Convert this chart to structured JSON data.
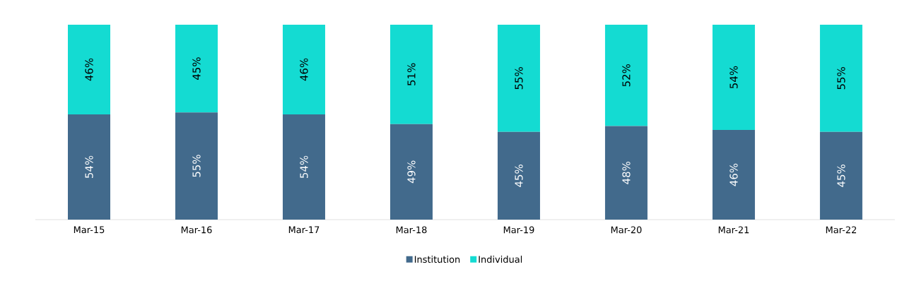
{
  "chart_data": {
    "type": "bar",
    "stacked": true,
    "legend": "bottom",
    "categories": [
      "Mar-15",
      "Mar-16",
      "Mar-17",
      "Mar-18",
      "Mar-19",
      "Mar-20",
      "Mar-21",
      "Mar-22"
    ],
    "series": [
      {
        "name": "Institution",
        "color": "#426a8c",
        "values": [
          54,
          55,
          54,
          49,
          45,
          48,
          46,
          45
        ],
        "value_labels": [
          "54%",
          "55%",
          "54%",
          "49%",
          "45%",
          "48%",
          "46%",
          "45%"
        ]
      },
      {
        "name": "Individual",
        "color": "#14dbd2",
        "values": [
          46,
          45,
          46,
          51,
          55,
          52,
          54,
          55
        ],
        "value_labels": [
          "46%",
          "45%",
          "46%",
          "51%",
          "55%",
          "52%",
          "54%",
          "55%"
        ]
      }
    ]
  }
}
